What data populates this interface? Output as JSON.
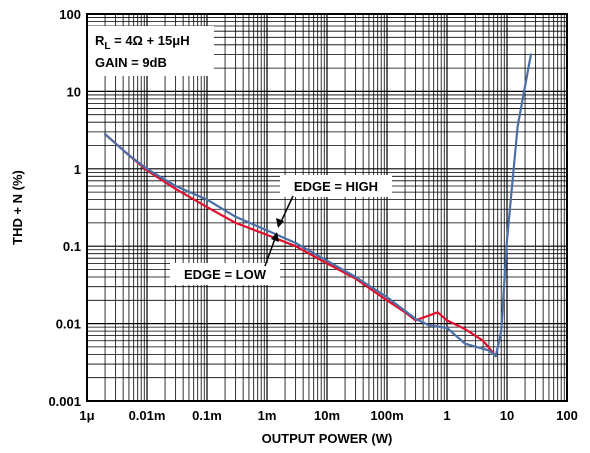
{
  "chart_data": {
    "type": "line",
    "title": "",
    "xlabel": "OUTPUT POWER (W)",
    "ylabel": "THD + N (%)",
    "x_scale": "log",
    "y_scale": "log",
    "xlim": [
      1e-06,
      100
    ],
    "ylim": [
      0.001,
      100
    ],
    "grid": true,
    "x_ticks": [
      {
        "value": 1e-06,
        "label": "1μ"
      },
      {
        "value": 1e-05,
        "label": "0.01m"
      },
      {
        "value": 0.0001,
        "label": "0.1m"
      },
      {
        "value": 0.001,
        "label": "1m"
      },
      {
        "value": 0.01,
        "label": "10m"
      },
      {
        "value": 0.1,
        "label": "100m"
      },
      {
        "value": 1,
        "label": "1"
      },
      {
        "value": 10,
        "label": "10"
      },
      {
        "value": 100,
        "label": "100"
      }
    ],
    "y_ticks": [
      {
        "value": 0.001,
        "label": "0.001"
      },
      {
        "value": 0.01,
        "label": "0.01"
      },
      {
        "value": 0.1,
        "label": "0.1"
      },
      {
        "value": 1,
        "label": "1"
      },
      {
        "value": 10,
        "label": "10"
      },
      {
        "value": 100,
        "label": "100"
      }
    ],
    "conditions": {
      "rl_prefix": "R",
      "rl_subscript": "L",
      "rl_value": " = 4Ω + 15μH",
      "gain": "GAIN = 9dB"
    },
    "annotations": [
      {
        "text": "EDGE = HIGH",
        "points_to": "EDGE = HIGH"
      },
      {
        "text": "EDGE = LOW",
        "points_to": "EDGE = LOW"
      }
    ],
    "series": [
      {
        "name": "EDGE = HIGH",
        "color": "#4a6fa5",
        "x": [
          2e-06,
          5e-06,
          1e-05,
          3e-05,
          0.0001,
          0.0003,
          0.001,
          0.003,
          0.01,
          0.03,
          0.1,
          0.3,
          0.5,
          1,
          2,
          5,
          6.5,
          8,
          10,
          15,
          25
        ],
        "y": [
          2.8,
          1.5,
          1.0,
          0.6,
          0.4,
          0.24,
          0.16,
          0.11,
          0.065,
          0.04,
          0.022,
          0.0115,
          0.0095,
          0.0088,
          0.0055,
          0.0045,
          0.0038,
          0.008,
          0.12,
          3.5,
          30
        ]
      },
      {
        "name": "EDGE = LOW",
        "color": "#e0102f",
        "x": [
          2e-06,
          5e-06,
          1e-05,
          3e-05,
          0.0001,
          0.0003,
          0.001,
          0.003,
          0.01,
          0.03,
          0.1,
          0.2,
          0.3,
          0.7,
          1,
          2,
          4,
          6.5
        ],
        "y": [
          2.8,
          1.5,
          0.95,
          0.55,
          0.32,
          0.2,
          0.14,
          0.1,
          0.06,
          0.038,
          0.02,
          0.014,
          0.011,
          0.014,
          0.011,
          0.0085,
          0.006,
          0.0038
        ]
      }
    ]
  }
}
